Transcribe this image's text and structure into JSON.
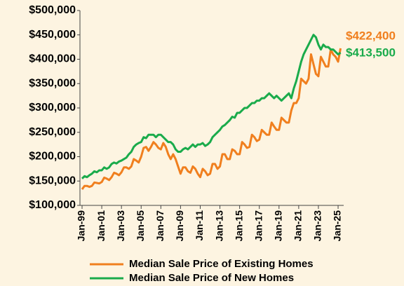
{
  "chart_data": {
    "type": "line",
    "categories": [
      "Jan-99",
      null,
      null,
      null,
      null,
      null,
      null,
      null,
      "Jan-01",
      null,
      null,
      null,
      null,
      null,
      null,
      null,
      "Jan-03",
      null,
      null,
      null,
      null,
      null,
      null,
      null,
      "Jan-05",
      null,
      null,
      null,
      null,
      null,
      null,
      null,
      "Jan-07",
      null,
      null,
      null,
      null,
      null,
      null,
      null,
      "Jan-09",
      null,
      null,
      null,
      null,
      null,
      null,
      null,
      "Jan-11",
      null,
      null,
      null,
      null,
      null,
      null,
      null,
      "Jan-13",
      null,
      null,
      null,
      null,
      null,
      null,
      null,
      "Jan-15",
      null,
      null,
      null,
      null,
      null,
      null,
      null,
      "Jan-17",
      null,
      null,
      null,
      null,
      null,
      null,
      null,
      "Jan-19",
      null,
      null,
      null,
      null,
      null,
      null,
      null,
      "Jan-21",
      null,
      null,
      null,
      null,
      null,
      null,
      null,
      "Jan-23",
      null,
      null,
      null,
      null,
      null,
      null,
      null,
      "Jan-25",
      null
    ],
    "series": [
      {
        "name": "Median Sale Price of Existing Homes",
        "color": "#f07f1e",
        "values": [
          133000,
          140000,
          140000,
          138000,
          140000,
          147000,
          146000,
          145000,
          148000,
          157000,
          155000,
          152000,
          158000,
          167000,
          165000,
          162000,
          168000,
          178000,
          178000,
          175000,
          180000,
          195000,
          192000,
          188000,
          200000,
          218000,
          220000,
          212000,
          220000,
          230000,
          225000,
          218000,
          215000,
          228000,
          220000,
          205000,
          195000,
          205000,
          195000,
          180000,
          165000,
          178000,
          178000,
          170000,
          167000,
          180000,
          175000,
          165000,
          158000,
          175000,
          170000,
          162000,
          165000,
          185000,
          185000,
          175000,
          180000,
          205000,
          205000,
          195000,
          195000,
          215000,
          212000,
          205000,
          205000,
          230000,
          225000,
          218000,
          220000,
          245000,
          240000,
          232000,
          235000,
          255000,
          250000,
          245000,
          245000,
          270000,
          262000,
          255000,
          255000,
          280000,
          275000,
          270000,
          270000,
          295000,
          310000,
          310000,
          320000,
          360000,
          355000,
          350000,
          360000,
          410000,
          390000,
          370000,
          365000,
          405000,
          395000,
          385000,
          385000,
          420000,
          410000,
          405000,
          395000,
          422400
        ]
      },
      {
        "name": "Median Sale Price of New Homes",
        "color": "#1aab4b",
        "values": [
          155000,
          160000,
          158000,
          162000,
          165000,
          170000,
          168000,
          172000,
          172000,
          178000,
          175000,
          178000,
          185000,
          188000,
          186000,
          190000,
          192000,
          195000,
          198000,
          205000,
          210000,
          220000,
          225000,
          228000,
          230000,
          240000,
          238000,
          245000,
          245000,
          245000,
          240000,
          245000,
          245000,
          240000,
          235000,
          230000,
          230000,
          225000,
          215000,
          210000,
          210000,
          215000,
          218000,
          215000,
          220000,
          225000,
          220000,
          225000,
          225000,
          228000,
          222000,
          225000,
          230000,
          240000,
          245000,
          250000,
          255000,
          262000,
          265000,
          270000,
          275000,
          282000,
          280000,
          290000,
          290000,
          295000,
          300000,
          300000,
          305000,
          310000,
          310000,
          315000,
          315000,
          320000,
          320000,
          325000,
          330000,
          325000,
          320000,
          325000,
          320000,
          315000,
          320000,
          325000,
          330000,
          320000,
          340000,
          355000,
          375000,
          395000,
          410000,
          420000,
          430000,
          440000,
          450000,
          445000,
          430000,
          420000,
          430000,
          425000,
          425000,
          420000,
          420000,
          415000,
          410000,
          413500
        ]
      }
    ],
    "annotations": [
      {
        "text": "$422,400",
        "color": "#f07f1e"
      },
      {
        "text": "$413,500",
        "color": "#1aab4b"
      }
    ],
    "ylim": [
      100000,
      500000
    ],
    "yticks": [
      {
        "value": 100000,
        "label": "$100,000"
      },
      {
        "value": 150000,
        "label": "$150,000"
      },
      {
        "value": 200000,
        "label": "$200,000"
      },
      {
        "value": 250000,
        "label": "$250,000"
      },
      {
        "value": 300000,
        "label": "$300,000"
      },
      {
        "value": 350000,
        "label": "$350,000"
      },
      {
        "value": 400000,
        "label": "$400,000"
      },
      {
        "value": 450000,
        "label": "$450,000"
      },
      {
        "value": 500000,
        "label": "$500,000"
      }
    ],
    "grid": false
  }
}
